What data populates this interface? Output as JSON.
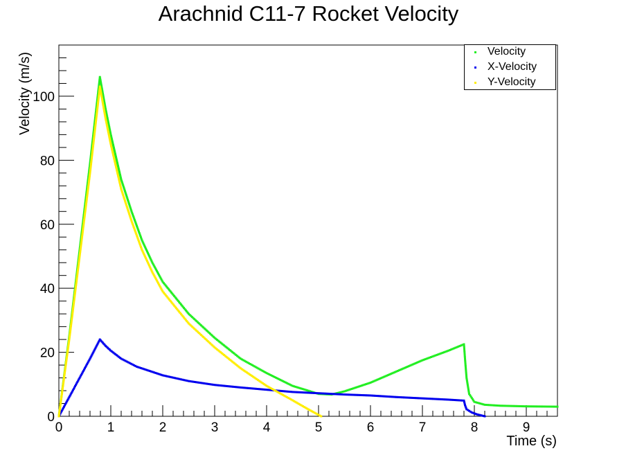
{
  "chart_data": {
    "type": "scatter",
    "title": "Arachnid C11-7 Rocket Velocity",
    "xlabel": "Time (s)",
    "ylabel": "Velocity (m/s)",
    "xlim": [
      0,
      9.6
    ],
    "ylim": [
      0,
      116
    ],
    "x_ticks": [
      "0",
      "1",
      "2",
      "3",
      "4",
      "5",
      "6",
      "7",
      "8",
      "9"
    ],
    "y_ticks": [
      "0",
      "20",
      "40",
      "60",
      "80",
      "100"
    ],
    "legend_position": "top-right",
    "series": [
      {
        "name": "Velocity",
        "color": "#22ee22",
        "points": [
          [
            0,
            0
          ],
          [
            0.2,
            25
          ],
          [
            0.4,
            52
          ],
          [
            0.6,
            79
          ],
          [
            0.79,
            106
          ],
          [
            0.9,
            96
          ],
          [
            1.0,
            88
          ],
          [
            1.2,
            74
          ],
          [
            1.4,
            64
          ],
          [
            1.6,
            55
          ],
          [
            1.8,
            48
          ],
          [
            2.0,
            42
          ],
          [
            2.5,
            32
          ],
          [
            3.0,
            24.5
          ],
          [
            3.5,
            18
          ],
          [
            4.0,
            13.5
          ],
          [
            4.5,
            9.5
          ],
          [
            5.0,
            7
          ],
          [
            5.25,
            6.8
          ],
          [
            5.5,
            7.8
          ],
          [
            6.0,
            10.5
          ],
          [
            6.5,
            14
          ],
          [
            7.0,
            17.5
          ],
          [
            7.5,
            20.5
          ],
          [
            7.8,
            22.5
          ],
          [
            7.82,
            18
          ],
          [
            7.85,
            12
          ],
          [
            7.9,
            7
          ],
          [
            8.0,
            4.5
          ],
          [
            8.2,
            3.6
          ],
          [
            8.5,
            3.3
          ],
          [
            9.0,
            3.1
          ],
          [
            9.6,
            3.0
          ]
        ]
      },
      {
        "name": "X-Velocity",
        "color": "#0000ee",
        "points": [
          [
            0,
            0
          ],
          [
            0.2,
            6
          ],
          [
            0.4,
            12
          ],
          [
            0.6,
            18
          ],
          [
            0.79,
            24
          ],
          [
            0.9,
            22
          ],
          [
            1.0,
            20.5
          ],
          [
            1.2,
            18
          ],
          [
            1.5,
            15.5
          ],
          [
            2.0,
            12.8
          ],
          [
            2.5,
            11
          ],
          [
            3.0,
            9.8
          ],
          [
            3.5,
            9
          ],
          [
            4.0,
            8.3
          ],
          [
            4.5,
            7.6
          ],
          [
            5.0,
            7.2
          ],
          [
            5.5,
            6.8
          ],
          [
            6.0,
            6.5
          ],
          [
            6.5,
            6
          ],
          [
            7.0,
            5.6
          ],
          [
            7.5,
            5.2
          ],
          [
            7.8,
            4.9
          ],
          [
            7.82,
            3.5
          ],
          [
            7.85,
            2.2
          ],
          [
            7.95,
            1.2
          ],
          [
            8.05,
            0.6
          ],
          [
            8.15,
            0.2
          ],
          [
            8.2,
            0
          ]
        ]
      },
      {
        "name": "Y-Velocity",
        "color": "#ffee00",
        "points": [
          [
            0,
            0
          ],
          [
            0.2,
            24
          ],
          [
            0.4,
            50
          ],
          [
            0.6,
            76
          ],
          [
            0.79,
            103
          ],
          [
            0.9,
            93
          ],
          [
            1.0,
            85
          ],
          [
            1.2,
            71
          ],
          [
            1.4,
            61
          ],
          [
            1.6,
            52
          ],
          [
            1.8,
            45
          ],
          [
            2.0,
            39
          ],
          [
            2.5,
            29
          ],
          [
            3.0,
            21.5
          ],
          [
            3.5,
            15
          ],
          [
            4.0,
            9.5
          ],
          [
            4.5,
            5
          ],
          [
            4.8,
            2.2
          ],
          [
            5.05,
            0
          ]
        ]
      }
    ]
  }
}
